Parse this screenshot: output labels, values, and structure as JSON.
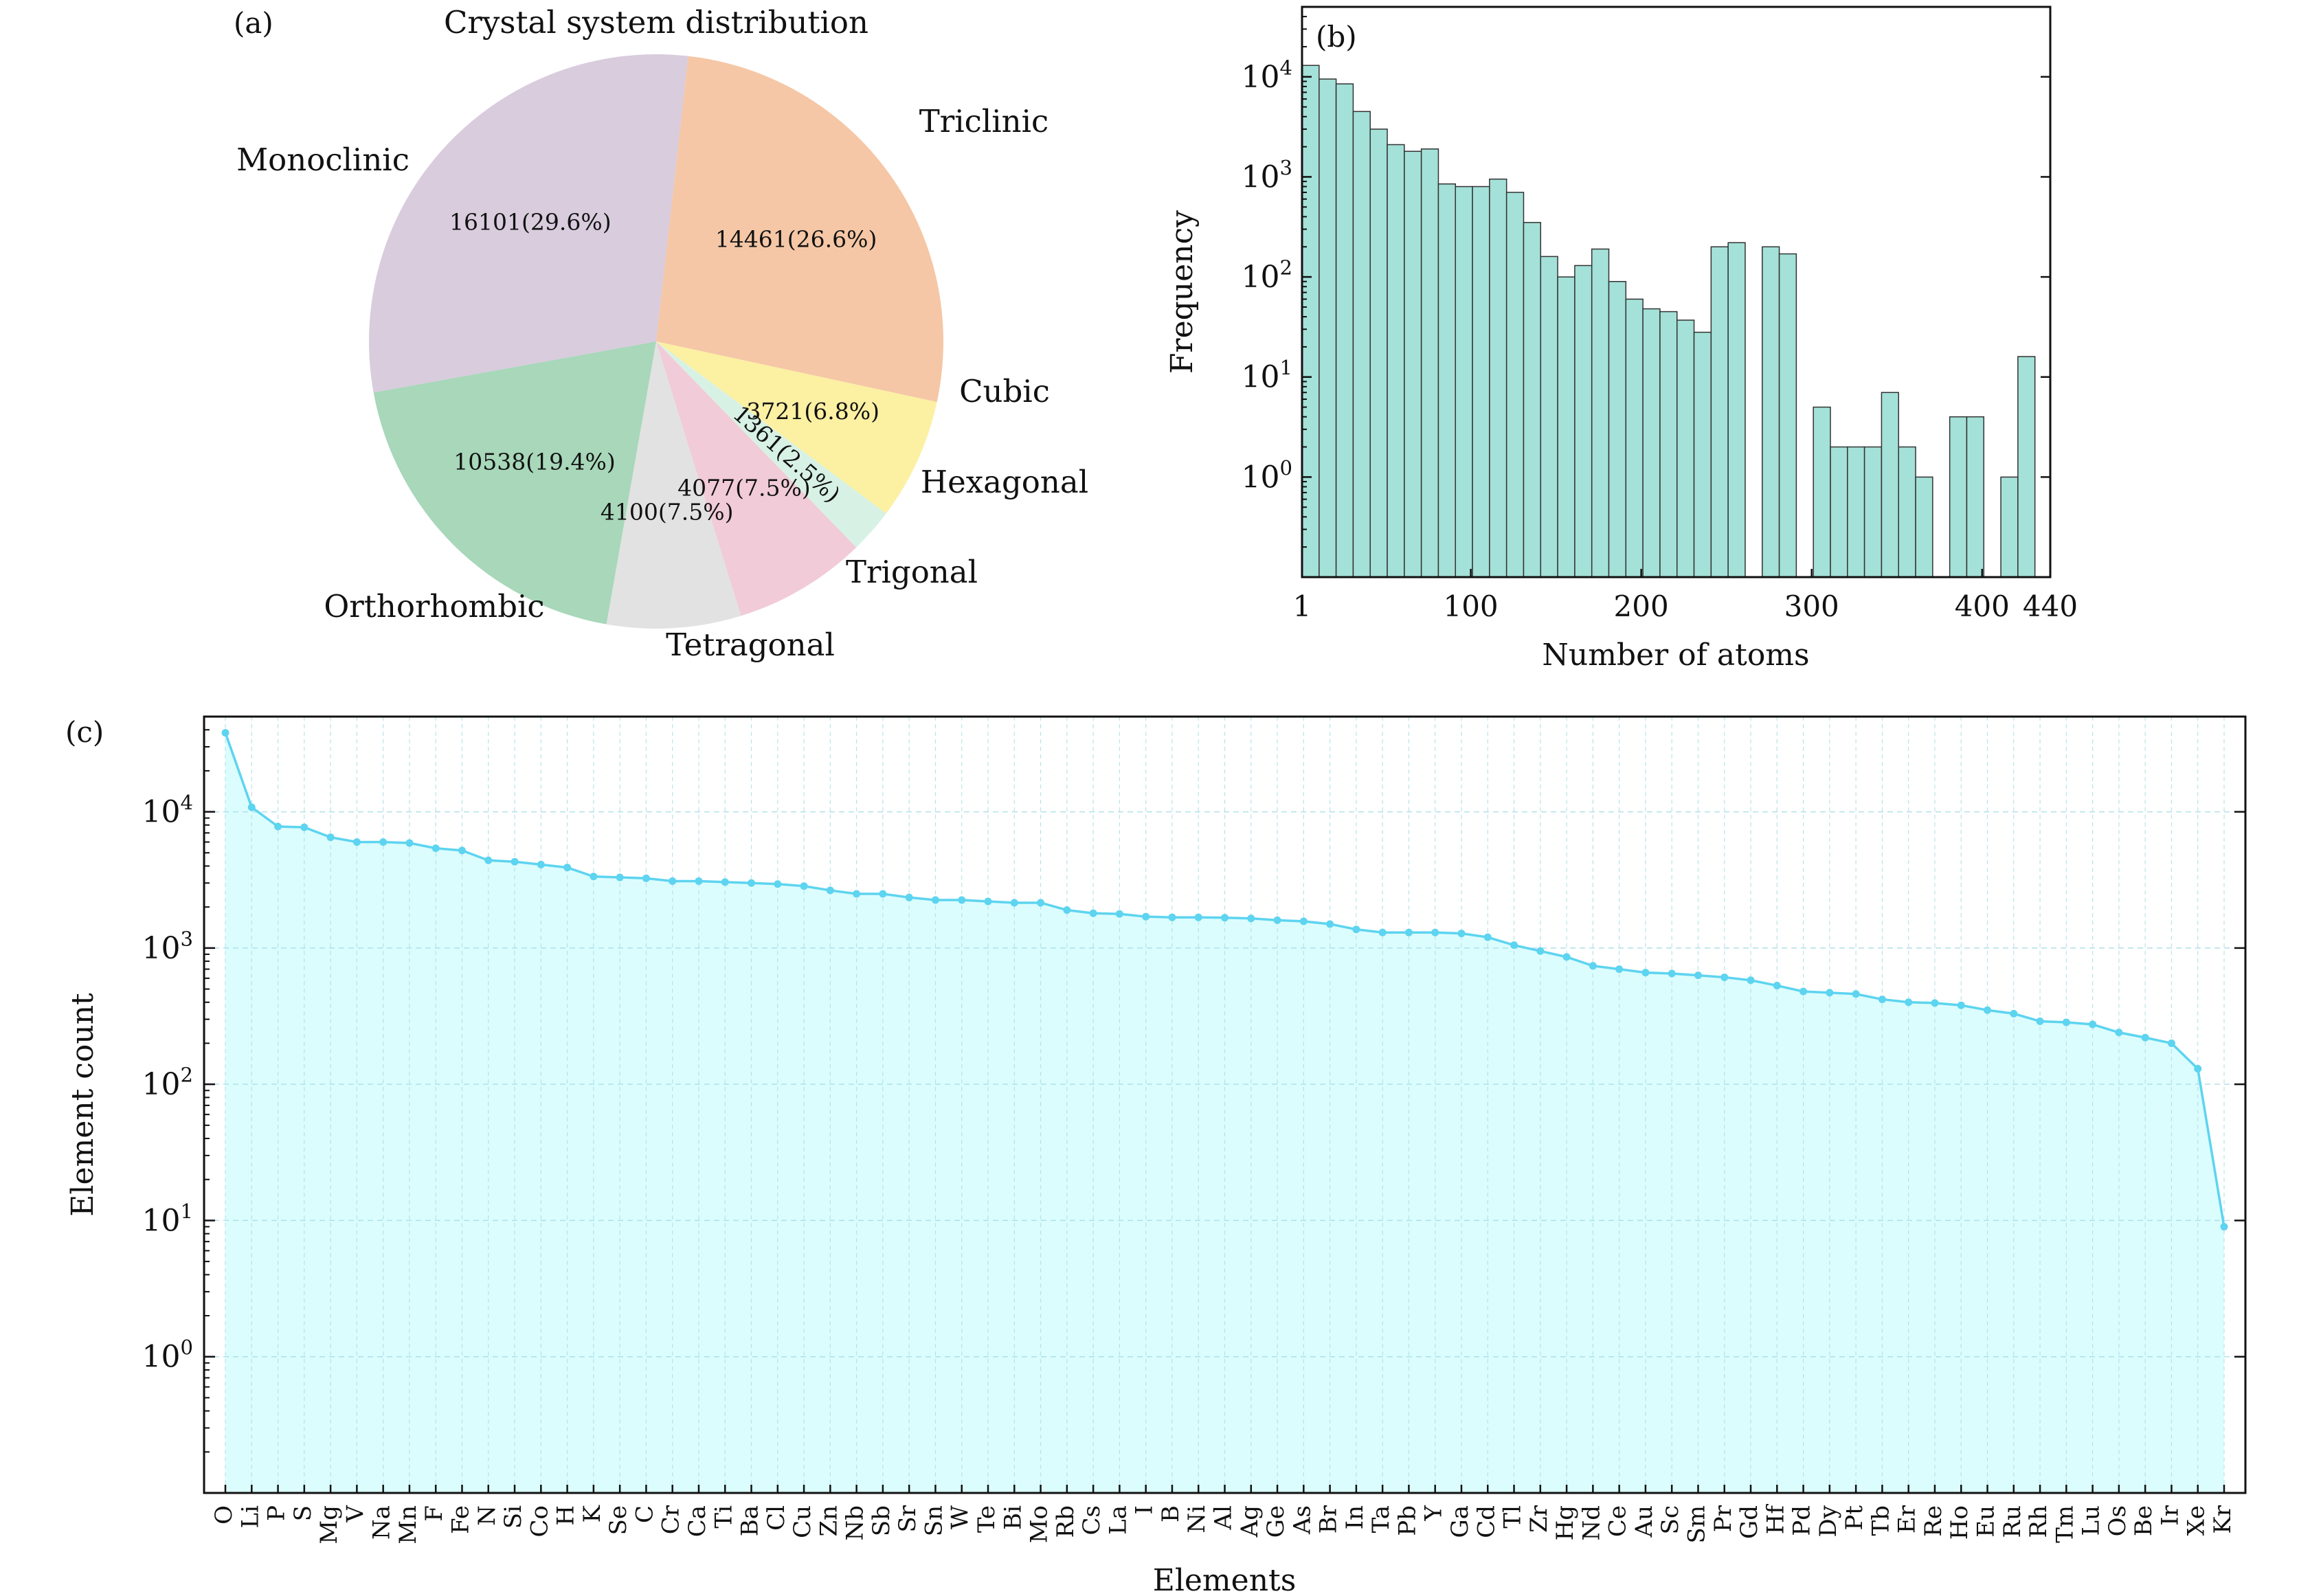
{
  "colors": {
    "pie": [
      "#F5C7A6",
      "#FCF0A3",
      "#D7F2E5",
      "#F1CBD7",
      "#E2E2E2",
      "#A8D7BA",
      "#D8CCDD"
    ],
    "hist_fill": "#A4E1D8",
    "hist_edge": "#333333",
    "line": "#5DD4F0",
    "area": "#DCFDFE",
    "grid": "#A9DDE6"
  },
  "chart_data": [
    {
      "type": "pie",
      "panel_label": "(a)",
      "title": "Crystal system distribution",
      "slices": [
        {
          "name": "Triclinic",
          "count": 14461,
          "value_label": "14461(26.6%)"
        },
        {
          "name": "Cubic",
          "count": 3721,
          "value_label": "3721(6.8%)"
        },
        {
          "name": "Hexagonal",
          "count": 1361,
          "value_label": "1361(2.5%)"
        },
        {
          "name": "Trigonal",
          "count": 4077,
          "value_label": "4077(7.5%)"
        },
        {
          "name": "Tetragonal",
          "count": 4100,
          "value_label": "4100(7.5%)"
        },
        {
          "name": "Orthorhombic",
          "count": 10538,
          "value_label": "10538(19.4%)"
        },
        {
          "name": "Monoclinic",
          "count": 16101,
          "value_label": "16101(29.6%)"
        }
      ]
    },
    {
      "type": "bar",
      "subtype": "histogram",
      "panel_label": "(b)",
      "xlabel": "Number of atoms",
      "ylabel": "Frequency",
      "yscale": "log",
      "xlim": [
        1,
        440
      ],
      "ylim": [
        0.1,
        50000
      ],
      "xticks": [
        1,
        100,
        200,
        300,
        400,
        440
      ],
      "yticks": [
        {
          "value": 1,
          "base": "10",
          "exp": "0"
        },
        {
          "value": 10,
          "base": "10",
          "exp": "1"
        },
        {
          "value": 100,
          "base": "10",
          "exp": "2"
        },
        {
          "value": 1000,
          "base": "10",
          "exp": "3"
        },
        {
          "value": 10000,
          "base": "10",
          "exp": "4"
        }
      ],
      "bin_width": 10,
      "bin_start": 1,
      "values": [
        13000,
        9500,
        8500,
        4500,
        3000,
        2100,
        1800,
        1900,
        850,
        800,
        800,
        950,
        700,
        350,
        160,
        100,
        130,
        190,
        90,
        60,
        48,
        45,
        37,
        28,
        200,
        220,
        0,
        200,
        170,
        0,
        5,
        2,
        2,
        2,
        7,
        2,
        1,
        0,
        4,
        4,
        0,
        1,
        16,
        0,
        0,
        0,
        0,
        0,
        0,
        0,
        0,
        0,
        0,
        0,
        0,
        0,
        0,
        0,
        0,
        0,
        0,
        0,
        0,
        0,
        0,
        0,
        0,
        0,
        0,
        0,
        0,
        0,
        0,
        0,
        0,
        0,
        0,
        0,
        0,
        0,
        0,
        0,
        0,
        0,
        0,
        0,
        0,
        0,
        0,
        0,
        0,
        0,
        0,
        0,
        0,
        0,
        0,
        0,
        0,
        0,
        0,
        0,
        0,
        0,
        0,
        0,
        0,
        0,
        0,
        0,
        0,
        0,
        0,
        0,
        0,
        0,
        0,
        0,
        0,
        0,
        0,
        0,
        0,
        0,
        0,
        0,
        0,
        0,
        0,
        0,
        0,
        0,
        0,
        0,
        0,
        0,
        0,
        0,
        0,
        0,
        0,
        0,
        0,
        0,
        0,
        0,
        0,
        0,
        0,
        0,
        0
      ]
    },
    {
      "type": "area",
      "panel_label": "(c)",
      "xlabel": "Elements",
      "ylabel": "Element count",
      "yscale": "log",
      "ylim": [
        0.1,
        50000
      ],
      "yticks": [
        {
          "value": 1,
          "base": "10",
          "exp": "0"
        },
        {
          "value": 10,
          "base": "10",
          "exp": "1"
        },
        {
          "value": 100,
          "base": "10",
          "exp": "2"
        },
        {
          "value": 1000,
          "base": "10",
          "exp": "3"
        },
        {
          "value": 10000,
          "base": "10",
          "exp": "4"
        }
      ],
      "categories": [
        "O",
        "Li",
        "P",
        "S",
        "Mg",
        "V",
        "Na",
        "Mn",
        "F",
        "Fe",
        "N",
        "Si",
        "Co",
        "H",
        "K",
        "Se",
        "C",
        "Cr",
        "Ca",
        "Ti",
        "Ba",
        "Cl",
        "Cu",
        "Zn",
        "Nb",
        "Sb",
        "Sr",
        "Sn",
        "W",
        "Te",
        "Bi",
        "Mo",
        "Rb",
        "Cs",
        "La",
        "I",
        "B",
        "Ni",
        "Al",
        "Ag",
        "Ge",
        "As",
        "Br",
        "In",
        "Ta",
        "Pb",
        "Y",
        "Ga",
        "Cd",
        "Tl",
        "Zr",
        "Hg",
        "Nd",
        "Ce",
        "Au",
        "Sc",
        "Sm",
        "Pr",
        "Gd",
        "Hf",
        "Pd",
        "Dy",
        "Pt",
        "Tb",
        "Er",
        "Re",
        "Ho",
        "Eu",
        "Ru",
        "Rh",
        "Tm",
        "Lu",
        "Os",
        "Be",
        "Ir",
        "Xe",
        "Kr"
      ],
      "values": [
        38000,
        10800,
        7800,
        7700,
        6500,
        6000,
        6000,
        5900,
        5400,
        5200,
        4400,
        4300,
        4100,
        3900,
        3350,
        3300,
        3250,
        3100,
        3100,
        3050,
        3000,
        2950,
        2850,
        2650,
        2500,
        2500,
        2350,
        2250,
        2250,
        2200,
        2150,
        2150,
        1900,
        1800,
        1780,
        1700,
        1680,
        1680,
        1670,
        1650,
        1600,
        1570,
        1500,
        1370,
        1300,
        1300,
        1300,
        1280,
        1200,
        1050,
        950,
        860,
        740,
        700,
        660,
        650,
        630,
        610,
        580,
        530,
        480,
        470,
        460,
        420,
        400,
        395,
        380,
        350,
        330,
        290,
        285,
        275,
        240,
        220,
        200,
        130,
        9
      ]
    }
  ]
}
